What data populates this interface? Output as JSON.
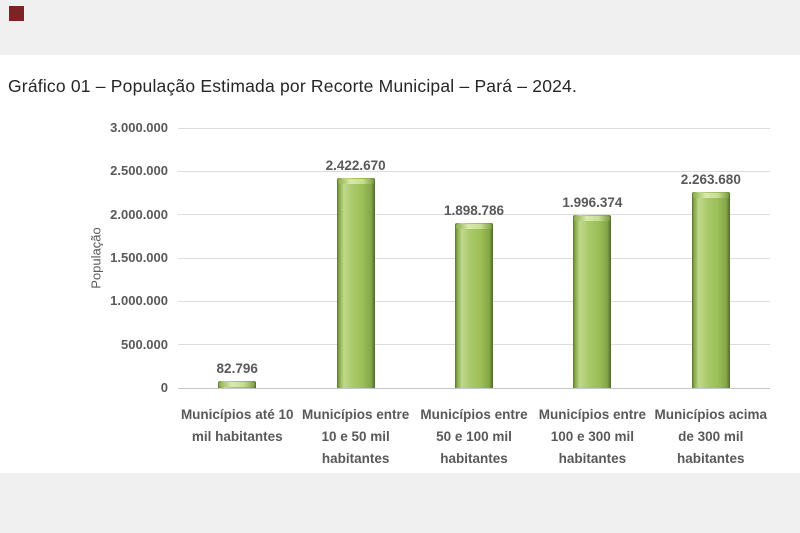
{
  "window": {
    "top_band_color": "#f0f0f0",
    "bottom_band_color": "#f0f0f0",
    "marker_color": "#7a2423"
  },
  "document": {
    "title": "Gráfico 01 – População Estimada por Recorte Municipal – Pará – 2024."
  },
  "chart_data": {
    "type": "bar",
    "title": "Gráfico 01 – População Estimada por Recorte Municipal – Pará – 2024.",
    "xlabel": "",
    "ylabel": "População",
    "ylim": [
      0,
      3000000
    ],
    "grid": true,
    "legend": false,
    "categories": [
      "Municípios até 10 mil habitantes",
      "Municípios entre 10 e 50 mil habitantes",
      "Municípios entre 50 e 100 mil habitantes",
      "Municípios entre 100 e 300 mil habitantes",
      "Municípios acima de 300 mil habitantes"
    ],
    "category_lines": [
      [
        "Municípios até 10",
        "mil habitantes"
      ],
      [
        "Municípios entre",
        "10 e 50 mil",
        "habitantes"
      ],
      [
        "Municípios entre",
        "50 e 100 mil",
        "habitantes"
      ],
      [
        "Municípios entre",
        "100 e 300 mil",
        "habitantes"
      ],
      [
        "Municípios acima",
        "de 300 mil",
        "habitantes"
      ]
    ],
    "values": [
      82796,
      2422670,
      1898786,
      1996374,
      2263680
    ],
    "value_labels": [
      "82.796",
      "2.422.670",
      "1.898.786",
      "1.996.374",
      "2.263.680"
    ],
    "y_ticks": [
      "3.000.000",
      "2.500.000",
      "2.000.000",
      "1.500.000",
      "1.000.000",
      "500.000",
      "0"
    ],
    "bar_color": "#9cbf57",
    "bar_edge_color": "#4f6a28",
    "bar_highlight_color": "#d9e9ad",
    "label_color": "#595959",
    "gridline_color": "#dcdcdc",
    "axis_line_color": "#c6c6c6"
  }
}
